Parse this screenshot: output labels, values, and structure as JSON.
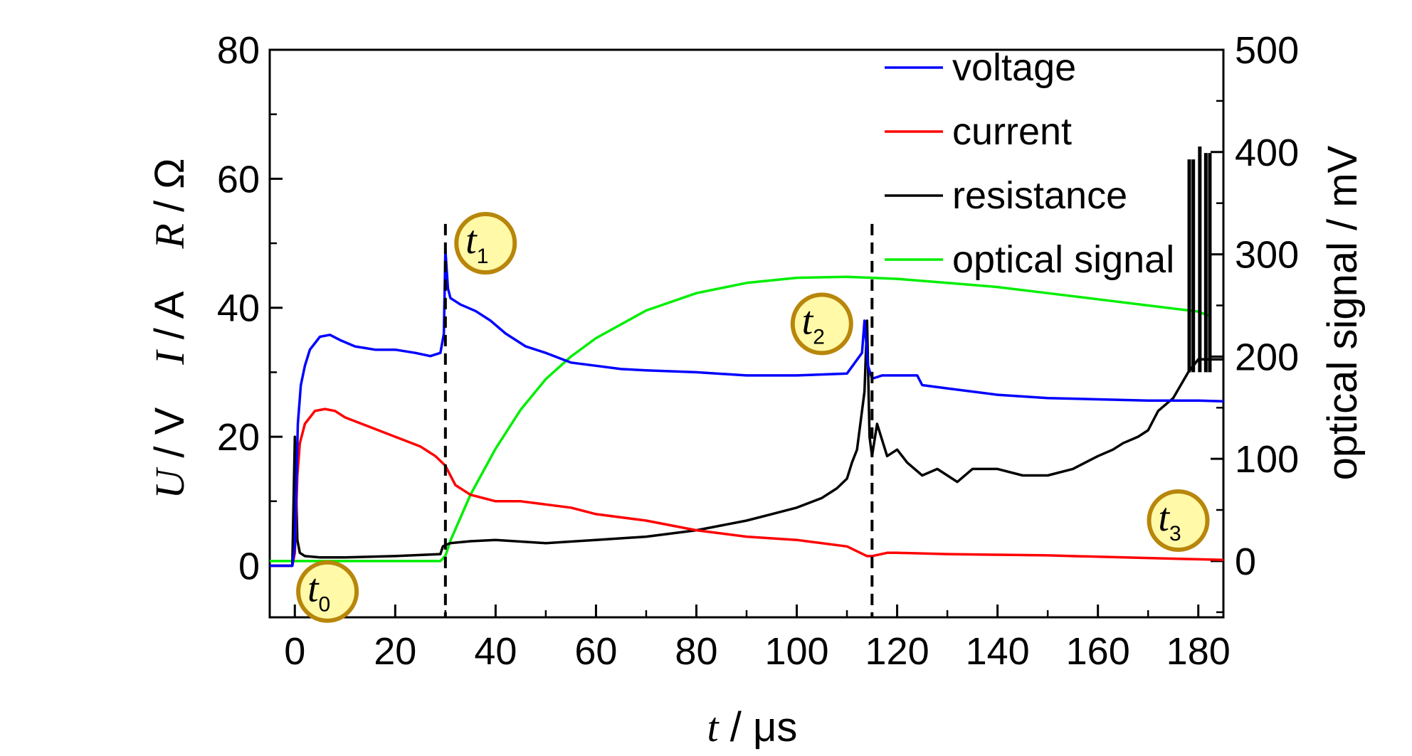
{
  "chart_data": {
    "type": "line",
    "title": "",
    "xlabel": "t / μs",
    "xlabel_parts": {
      "var": "t",
      "unit": " / μs"
    },
    "xlim": [
      -5,
      185
    ],
    "xticks": [
      0,
      20,
      40,
      60,
      80,
      100,
      120,
      140,
      160,
      180
    ],
    "ylabel_left": "U / V    I / A    R / Ω",
    "ylabel_left_parts": [
      {
        "var": "U",
        "unit": " / V"
      },
      {
        "var": "I",
        "unit": " / A"
      },
      {
        "var": "R",
        "unit": " / Ω"
      }
    ],
    "ylim_left": [
      -8,
      80
    ],
    "yticks_left": [
      0,
      20,
      40,
      60,
      80
    ],
    "ylabel_right": "optical signal / mV",
    "ylim_right": [
      -55,
      500
    ],
    "yticks_right": [
      0,
      100,
      200,
      300,
      400,
      500
    ],
    "grid": false,
    "legend_position": "top-right",
    "series": [
      {
        "name": "voltage",
        "color": "#0000ff",
        "axis": "left",
        "x": [
          -5,
          -0.5,
          0,
          0.6,
          1.2,
          2,
          3,
          5,
          7,
          9,
          12,
          16,
          20,
          24,
          27,
          29,
          29.7,
          30,
          30.5,
          31,
          33,
          36,
          39,
          42,
          46,
          50,
          55,
          60,
          65,
          70,
          80,
          90,
          100,
          110,
          113,
          113.5,
          114.2,
          115,
          117,
          120,
          124,
          125,
          130,
          140,
          150,
          160,
          170,
          180,
          185
        ],
        "y": [
          0,
          0,
          3,
          22,
          28,
          31,
          33.5,
          35.5,
          35.8,
          35,
          34,
          33.5,
          33.5,
          33,
          32.5,
          33,
          36,
          49,
          43,
          41.5,
          40.5,
          39.5,
          38,
          36,
          34,
          33,
          31.5,
          31,
          30.5,
          30.3,
          30,
          29.5,
          29.5,
          29.8,
          33,
          38,
          31,
          29,
          29.5,
          29.5,
          29.5,
          28,
          27.5,
          26.5,
          26,
          25.8,
          25.6,
          25.6,
          25.5
        ]
      },
      {
        "name": "current",
        "color": "#ff0000",
        "axis": "left",
        "x": [
          -5,
          -0.5,
          0,
          0.5,
          1,
          2,
          4,
          6,
          8,
          10,
          15,
          20,
          25,
          28,
          30,
          32,
          35,
          40,
          45,
          50,
          55,
          60,
          70,
          80,
          90,
          100,
          110,
          114,
          115,
          118,
          120,
          130,
          140,
          150,
          160,
          170,
          180,
          185
        ],
        "y": [
          0,
          0,
          2,
          14,
          19,
          22,
          24,
          24.3,
          24,
          23,
          21.5,
          20,
          18.5,
          17,
          15.5,
          12.5,
          11,
          10,
          10,
          9.5,
          9,
          8,
          7,
          5.5,
          4.5,
          4,
          3,
          1.5,
          1.5,
          2,
          2,
          1.8,
          1.7,
          1.6,
          1.4,
          1.2,
          1,
          0.9
        ]
      },
      {
        "name": "resistance",
        "color": "#000000",
        "axis": "left",
        "x": [
          -5,
          -0.5,
          0,
          0.5,
          1,
          2,
          5,
          10,
          20,
          29,
          29.5,
          30,
          31,
          35,
          40,
          50,
          60,
          70,
          80,
          90,
          95,
          100,
          105,
          108,
          110,
          111,
          112,
          113,
          113.5,
          114,
          114.5,
          115,
          116,
          118,
          120,
          122,
          125,
          128,
          132,
          135,
          140,
          145,
          150,
          155,
          160,
          163,
          165,
          168,
          170,
          172,
          175,
          178,
          180,
          182,
          185
        ],
        "y": [
          0,
          0,
          20,
          4,
          2,
          1.5,
          1.3,
          1.3,
          1.5,
          1.8,
          3,
          3.2,
          3.5,
          3.8,
          4,
          3.5,
          4,
          4.5,
          5.5,
          7,
          8,
          9,
          10.5,
          12,
          13.5,
          16,
          18,
          24,
          27,
          38,
          20,
          17,
          22,
          17,
          18,
          16,
          14,
          15,
          13,
          15,
          15,
          14,
          14,
          15,
          17,
          18,
          19,
          20,
          21,
          24,
          26,
          30,
          32,
          32,
          32
        ]
      },
      {
        "name": "optical signal",
        "color": "#00ee00",
        "axis": "right",
        "x": [
          -5,
          0,
          10,
          20,
          29,
          30,
          31,
          35,
          40,
          45,
          50,
          55,
          60,
          70,
          80,
          90,
          100,
          110,
          115,
          120,
          130,
          140,
          150,
          160,
          170,
          180,
          182
        ],
        "y": [
          0,
          0,
          0,
          0,
          0,
          5,
          20,
          65,
          110,
          148,
          178,
          200,
          218,
          245,
          262,
          272,
          277,
          278,
          277,
          276,
          272,
          268,
          262,
          256,
          250,
          244,
          240
        ]
      }
    ],
    "spikes": {
      "series": "resistance",
      "axis": "left",
      "x": [
        178.2,
        179.0,
        180.3,
        181.5,
        182.3
      ],
      "ymin": 30,
      "ymax": [
        63,
        63,
        65,
        64,
        64
      ]
    },
    "vertical_dashed_lines": [
      30,
      115
    ],
    "annotations": [
      {
        "var": "t",
        "sub": "0",
        "x": 6.5,
        "y": -4
      },
      {
        "var": "t",
        "sub": "1",
        "x": 38,
        "y": 50
      },
      {
        "var": "t",
        "sub": "2",
        "x": 105,
        "y": 37.5
      },
      {
        "var": "t",
        "sub": "3",
        "x": 176,
        "y": 7
      }
    ]
  }
}
